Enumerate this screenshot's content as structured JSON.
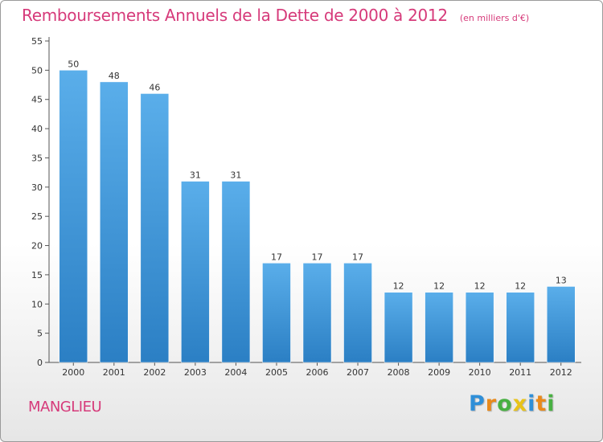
{
  "chart_data": {
    "type": "bar",
    "title": "Remboursements Annuels de la Dette de 2000 à 2012",
    "unit_label": "(en milliers d'€)",
    "categories": [
      "2000",
      "2001",
      "2002",
      "2003",
      "2004",
      "2005",
      "2006",
      "2007",
      "2008",
      "2009",
      "2010",
      "2011",
      "2012"
    ],
    "values": [
      50,
      48,
      46,
      31,
      31,
      17,
      17,
      17,
      12,
      12,
      12,
      12,
      13
    ],
    "ylim": [
      0,
      55
    ],
    "yticks": [
      0,
      5,
      10,
      15,
      20,
      25,
      30,
      35,
      40,
      45,
      50,
      55
    ],
    "grid": false,
    "bar_color_top": "#5aaeea",
    "bar_color_bottom": "#2b7fc4"
  },
  "footer": {
    "town": "MANGLIEU",
    "brand_letters": [
      "P",
      "r",
      "o",
      "x",
      "i",
      "t",
      "i"
    ],
    "brand_colors": [
      "#2f8fd8",
      "#e98a1b",
      "#48b042",
      "#e8c31a",
      "#2f8fd8",
      "#e98a1b",
      "#48b042"
    ]
  },
  "colors": {
    "title": "#d63a7a",
    "axis": "#333333"
  }
}
